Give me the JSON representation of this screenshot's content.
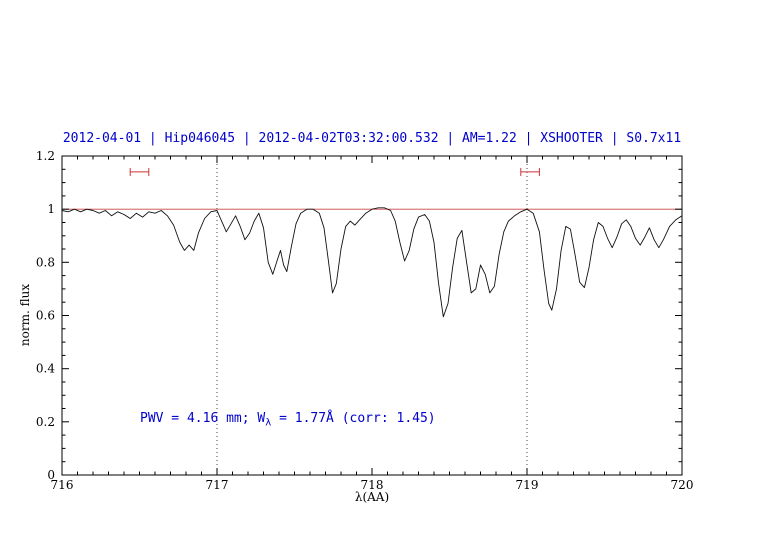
{
  "chart_data": {
    "type": "line",
    "title": "2012-04-01 | Hip046045 | 2012-04-02T03:32:00.532 | AM=1.22 | XSHOOTER | S0.7x11",
    "xlabel": "λ(AA)",
    "ylabel": "norm. flux",
    "xlim": [
      716,
      720
    ],
    "ylim": [
      0,
      1.2
    ],
    "x_ticks": [
      716,
      717,
      718,
      719,
      720
    ],
    "x_tick_labels": [
      "716",
      "717",
      "718",
      "719",
      "720"
    ],
    "x_minor_step": 0.1,
    "y_ticks": [
      0,
      0.2,
      0.4,
      0.6,
      0.8,
      1,
      1.2
    ],
    "y_tick_labels": [
      "0",
      "0.2",
      "0.4",
      "0.6",
      "0.8",
      "1",
      "1.2"
    ],
    "y_minor_step": 0.05,
    "grid": "off",
    "legend": "none",
    "dotted_vlines": [
      717,
      719
    ],
    "continuum_line": {
      "y": 1.0
    },
    "range_markers": [
      {
        "x_start": 716.44,
        "x_end": 716.56,
        "y": 1.14
      },
      {
        "x_start": 718.96,
        "x_end": 719.08,
        "y": 1.14
      }
    ],
    "annotation": {
      "pre": "PWV = 4.16 mm; W",
      "sub": "λ",
      "post": " = 1.77Å (corr: 1.45)"
    },
    "colors": {
      "title": "#0000cc",
      "annotation": "#0000cc",
      "spectrum": "#111111",
      "continuum": "#cc4444",
      "marker": "#cc3333",
      "vline": "#333333",
      "frame": "#000000"
    },
    "series": [
      {
        "name": "telluric-spectrum",
        "color": "#111111",
        "points": [
          [
            716.0,
            0.995
          ],
          [
            716.04,
            0.99
          ],
          [
            716.08,
            1.0
          ],
          [
            716.12,
            0.99
          ],
          [
            716.16,
            1.0
          ],
          [
            716.2,
            0.995
          ],
          [
            716.24,
            0.985
          ],
          [
            716.28,
            0.995
          ],
          [
            716.32,
            0.975
          ],
          [
            716.36,
            0.99
          ],
          [
            716.4,
            0.98
          ],
          [
            716.44,
            0.965
          ],
          [
            716.48,
            0.985
          ],
          [
            716.52,
            0.97
          ],
          [
            716.56,
            0.99
          ],
          [
            716.6,
            0.985
          ],
          [
            716.64,
            0.995
          ],
          [
            716.68,
            0.975
          ],
          [
            716.72,
            0.94
          ],
          [
            716.76,
            0.875
          ],
          [
            716.79,
            0.845
          ],
          [
            716.82,
            0.865
          ],
          [
            716.85,
            0.845
          ],
          [
            716.88,
            0.91
          ],
          [
            716.92,
            0.965
          ],
          [
            716.96,
            0.99
          ],
          [
            717.0,
            0.995
          ],
          [
            717.03,
            0.955
          ],
          [
            717.06,
            0.915
          ],
          [
            717.09,
            0.945
          ],
          [
            717.12,
            0.975
          ],
          [
            717.15,
            0.935
          ],
          [
            717.18,
            0.885
          ],
          [
            717.21,
            0.91
          ],
          [
            717.24,
            0.955
          ],
          [
            717.27,
            0.985
          ],
          [
            717.3,
            0.93
          ],
          [
            717.33,
            0.8
          ],
          [
            717.36,
            0.755
          ],
          [
            717.39,
            0.81
          ],
          [
            717.41,
            0.845
          ],
          [
            717.43,
            0.79
          ],
          [
            717.45,
            0.765
          ],
          [
            717.48,
            0.86
          ],
          [
            717.51,
            0.945
          ],
          [
            717.54,
            0.985
          ],
          [
            717.58,
            1.0
          ],
          [
            717.62,
            1.0
          ],
          [
            717.66,
            0.985
          ],
          [
            717.69,
            0.93
          ],
          [
            717.72,
            0.8
          ],
          [
            717.745,
            0.685
          ],
          [
            717.77,
            0.72
          ],
          [
            717.8,
            0.85
          ],
          [
            717.83,
            0.935
          ],
          [
            717.86,
            0.955
          ],
          [
            717.89,
            0.94
          ],
          [
            717.92,
            0.96
          ],
          [
            717.96,
            0.985
          ],
          [
            718.0,
            1.0
          ],
          [
            718.04,
            1.005
          ],
          [
            718.08,
            1.005
          ],
          [
            718.12,
            0.995
          ],
          [
            718.15,
            0.955
          ],
          [
            718.18,
            0.875
          ],
          [
            718.21,
            0.805
          ],
          [
            718.24,
            0.845
          ],
          [
            718.27,
            0.925
          ],
          [
            718.3,
            0.97
          ],
          [
            718.34,
            0.98
          ],
          [
            718.37,
            0.955
          ],
          [
            718.4,
            0.875
          ],
          [
            718.43,
            0.72
          ],
          [
            718.46,
            0.595
          ],
          [
            718.49,
            0.645
          ],
          [
            718.52,
            0.78
          ],
          [
            718.55,
            0.89
          ],
          [
            718.58,
            0.92
          ],
          [
            718.61,
            0.8
          ],
          [
            718.64,
            0.685
          ],
          [
            718.67,
            0.7
          ],
          [
            718.7,
            0.79
          ],
          [
            718.73,
            0.755
          ],
          [
            718.76,
            0.685
          ],
          [
            718.79,
            0.71
          ],
          [
            718.82,
            0.83
          ],
          [
            718.85,
            0.915
          ],
          [
            718.88,
            0.955
          ],
          [
            718.92,
            0.975
          ],
          [
            718.96,
            0.99
          ],
          [
            719.0,
            1.0
          ],
          [
            719.04,
            0.985
          ],
          [
            719.08,
            0.915
          ],
          [
            719.11,
            0.77
          ],
          [
            719.14,
            0.645
          ],
          [
            719.16,
            0.62
          ],
          [
            719.19,
            0.7
          ],
          [
            719.22,
            0.845
          ],
          [
            719.25,
            0.935
          ],
          [
            719.28,
            0.925
          ],
          [
            719.31,
            0.83
          ],
          [
            719.34,
            0.725
          ],
          [
            719.37,
            0.705
          ],
          [
            719.4,
            0.78
          ],
          [
            719.43,
            0.885
          ],
          [
            719.46,
            0.95
          ],
          [
            719.49,
            0.935
          ],
          [
            719.52,
            0.89
          ],
          [
            719.55,
            0.855
          ],
          [
            719.58,
            0.895
          ],
          [
            719.61,
            0.945
          ],
          [
            719.64,
            0.96
          ],
          [
            719.67,
            0.935
          ],
          [
            719.7,
            0.89
          ],
          [
            719.73,
            0.865
          ],
          [
            719.76,
            0.895
          ],
          [
            719.79,
            0.93
          ],
          [
            719.82,
            0.885
          ],
          [
            719.85,
            0.855
          ],
          [
            719.88,
            0.885
          ],
          [
            719.92,
            0.935
          ],
          [
            719.96,
            0.96
          ],
          [
            720.0,
            0.975
          ]
        ]
      }
    ]
  }
}
